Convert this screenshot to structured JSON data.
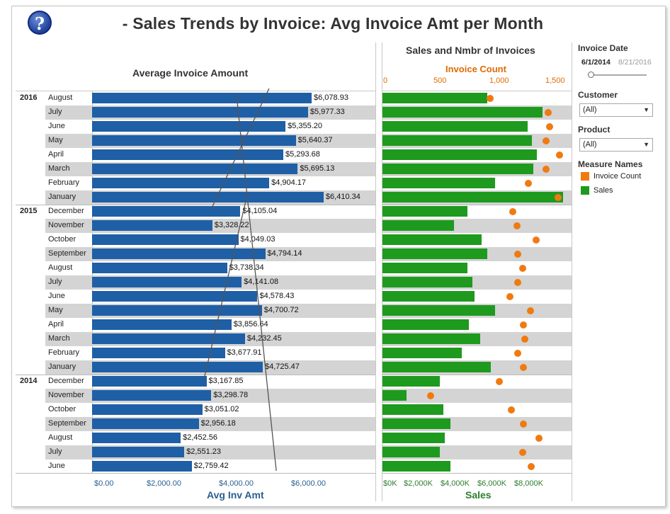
{
  "header": {
    "title": "- Sales Trends by Invoice: Avg Invoice Amt per Month",
    "help_glyph": "?"
  },
  "left_chart": {
    "title": "Average Invoice Amount",
    "axis_title": "Avg Inv Amt",
    "axis_ticks": [
      "$0.00",
      "$2,000.00",
      "$4,000.00",
      "$6,000.00"
    ]
  },
  "right_chart": {
    "title": "Sales and Nmbr of Invoices",
    "top_axis_title": "Invoice Count",
    "top_axis_ticks": [
      "0",
      "500",
      "1,000",
      "1,500"
    ],
    "bottom_axis_title": "Sales",
    "bottom_axis_ticks": [
      "$0K",
      "$2,000K",
      "$4,000K",
      "$6,000K",
      "$8,000K"
    ]
  },
  "filters": {
    "invoice_date": {
      "label": "Invoice Date",
      "start": "6/1/2014",
      "end": "8/21/2016"
    },
    "customer": {
      "label": "Customer",
      "value": "(All)"
    },
    "product": {
      "label": "Product",
      "value": "(All)"
    },
    "legend": {
      "title": "Measure Names",
      "items": [
        {
          "label": "Invoice Count",
          "color": "#f07a10"
        },
        {
          "label": "Sales",
          "color": "#1e9a1e"
        }
      ]
    }
  },
  "colors": {
    "avg_bar": "#1f5fa6",
    "sales_bar": "#1e9a1e",
    "count_dot": "#f07a10",
    "band": "#d4d4d4"
  },
  "chart_data": [
    {
      "type": "bar",
      "title": "Average Invoice Amount",
      "xlabel": "Avg Inv Amt",
      "xlim": [
        0,
        7800
      ],
      "rows": [
        {
          "year": "2016",
          "month": "August",
          "value": 6078.93,
          "label": "$6,078.93"
        },
        {
          "year": "",
          "month": "July",
          "value": 5977.33,
          "label": "$5,977.33"
        },
        {
          "year": "",
          "month": "June",
          "value": 5355.2,
          "label": "$5,355.20"
        },
        {
          "year": "",
          "month": "May",
          "value": 5640.37,
          "label": "$5,640.37"
        },
        {
          "year": "",
          "month": "April",
          "value": 5293.68,
          "label": "$5,293.68"
        },
        {
          "year": "",
          "month": "March",
          "value": 5695.13,
          "label": "$5,695.13"
        },
        {
          "year": "",
          "month": "February",
          "value": 4904.17,
          "label": "$4,904.17"
        },
        {
          "year": "",
          "month": "January",
          "value": 6410.34,
          "label": "$6,410.34"
        },
        {
          "year": "2015",
          "month": "December",
          "value": 4105.04,
          "label": "$4,105.04"
        },
        {
          "year": "",
          "month": "November",
          "value": 3328.22,
          "label": "$3,328.22"
        },
        {
          "year": "",
          "month": "October",
          "value": 4049.03,
          "label": "$4,049.03"
        },
        {
          "year": "",
          "month": "September",
          "value": 4794.14,
          "label": "$4,794.14"
        },
        {
          "year": "",
          "month": "August",
          "value": 3738.34,
          "label": "$3,738.34"
        },
        {
          "year": "",
          "month": "July",
          "value": 4141.08,
          "label": "$4,141.08"
        },
        {
          "year": "",
          "month": "June",
          "value": 4578.43,
          "label": "$4,578.43"
        },
        {
          "year": "",
          "month": "May",
          "value": 4700.72,
          "label": "$4,700.72"
        },
        {
          "year": "",
          "month": "April",
          "value": 3856.64,
          "label": "$3,856.64"
        },
        {
          "year": "",
          "month": "March",
          "value": 4232.45,
          "label": "$4,232.45"
        },
        {
          "year": "",
          "month": "February",
          "value": 3677.91,
          "label": "$3,677.91"
        },
        {
          "year": "",
          "month": "January",
          "value": 4725.47,
          "label": "$4,725.47"
        },
        {
          "year": "2014",
          "month": "December",
          "value": 3167.85,
          "label": "$3,167.85"
        },
        {
          "year": "",
          "month": "November",
          "value": 3298.78,
          "label": "$3,298.78"
        },
        {
          "year": "",
          "month": "October",
          "value": 3051.02,
          "label": "$3,051.02"
        },
        {
          "year": "",
          "month": "September",
          "value": 2956.18,
          "label": "$2,956.18"
        },
        {
          "year": "",
          "month": "August",
          "value": 2452.56,
          "label": "$2,452.56"
        },
        {
          "year": "",
          "month": "July",
          "value": 2551.23,
          "label": "$2,551.23"
        },
        {
          "year": "",
          "month": "June",
          "value": 2759.42,
          "label": "$2,759.42"
        }
      ],
      "trend_lines": [
        {
          "group": "2016",
          "from_value": 4000,
          "to_value": 5100
        },
        {
          "group": "2015",
          "from_value": 3300,
          "to_value": 4900
        },
        {
          "group": "2014",
          "from_value": 3100,
          "to_value": 4250
        }
      ]
    },
    {
      "type": "bar",
      "title": "Sales and Nmbr of Invoices",
      "xlabel": "Sales",
      "xlim_sales": [
        0,
        10000
      ],
      "xlim_count": [
        0,
        1700
      ],
      "series": [
        {
          "name": "Sales",
          "unit": "$K",
          "values": [
            5700,
            8700,
            7900,
            8100,
            8400,
            8200,
            6100,
            9800,
            4600,
            3900,
            5400,
            5700,
            4600,
            4900,
            5000,
            6100,
            4700,
            5300,
            4300,
            5900,
            3100,
            1300,
            3300,
            3700,
            3400,
            3100,
            3700
          ]
        },
        {
          "name": "Invoice Count",
          "values": [
            930,
            1450,
            1460,
            1430,
            1550,
            1430,
            1270,
            1540,
            1130,
            1170,
            1340,
            1180,
            1220,
            1180,
            1110,
            1290,
            1230,
            1240,
            1180,
            1230,
            1010,
            400,
            1120,
            1230,
            1370,
            1220,
            1300
          ]
        }
      ]
    }
  ]
}
